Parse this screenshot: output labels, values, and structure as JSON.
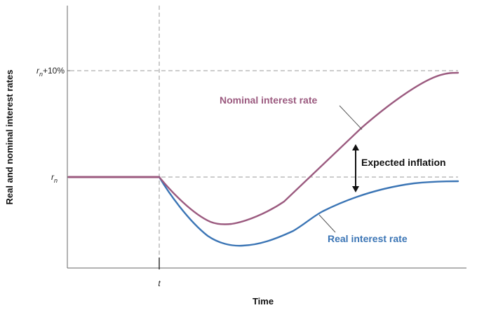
{
  "chart_data": {
    "type": "line",
    "xlabel": "Time",
    "ylabel": "Real and nominal interest rates",
    "x_ticks": [
      {
        "label": "t",
        "italic": true
      }
    ],
    "y_ticks": [
      {
        "base": "r",
        "sub": "n",
        "suffix": "+10%"
      },
      {
        "base": "r",
        "sub": "n",
        "suffix": ""
      }
    ],
    "grid": "dashed reference lines at y ticks and at t",
    "series": [
      {
        "name": "Nominal interest rate",
        "color": "#9b5a7f",
        "x": [
          0,
          1,
          2,
          3,
          4,
          5,
          6,
          7,
          8
        ],
        "y": [
          0,
          0,
          -2.8,
          -2.2,
          -1.0,
          4.0,
          7.6,
          9.8,
          10.0
        ]
      },
      {
        "name": "Real interest rate",
        "color": "#3b75b5",
        "x": [
          0,
          1,
          2,
          3,
          4,
          5,
          6,
          7,
          8
        ],
        "y": [
          0,
          0,
          -4.3,
          -3.8,
          -2.6,
          -1.2,
          -0.4,
          -0.1,
          0.0
        ]
      }
    ],
    "annotations": [
      {
        "text": "Expected inflation",
        "type": "double-arrow"
      }
    ]
  }
}
